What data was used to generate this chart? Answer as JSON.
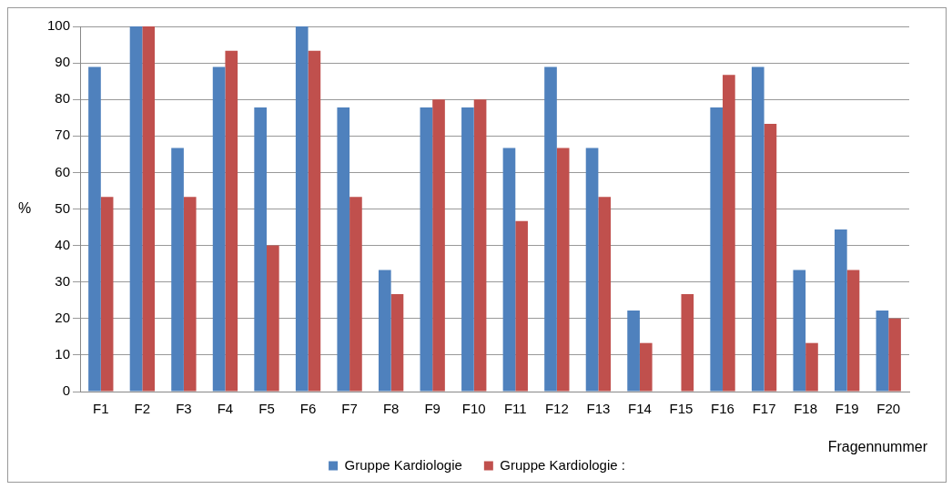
{
  "chart_data": {
    "type": "bar",
    "categories": [
      "F1",
      "F2",
      "F3",
      "F4",
      "F5",
      "F6",
      "F7",
      "F8",
      "F9",
      "F10",
      "F11",
      "F12",
      "F13",
      "F14",
      "F15",
      "F16",
      "F17",
      "F18",
      "F19",
      "F20"
    ],
    "series": [
      {
        "name": "Gruppe Kardiologie",
        "color": "#4f81bd",
        "values": [
          88.9,
          100,
          66.7,
          88.9,
          77.8,
          100,
          77.8,
          33.3,
          77.8,
          77.8,
          66.7,
          88.9,
          66.7,
          22.2,
          0,
          77.8,
          88.9,
          33.3,
          44.4,
          22.2
        ]
      },
      {
        "name": "Gruppe Kardiologie :",
        "color": "#c0504d",
        "values": [
          53.3,
          100,
          53.3,
          93.3,
          40,
          93.3,
          53.3,
          26.7,
          80,
          80,
          46.7,
          66.7,
          53.3,
          13.3,
          26.7,
          86.7,
          73.3,
          13.3,
          33.3,
          20
        ]
      }
    ],
    "ylabel": "%",
    "xlabel": "Fragennummer",
    "ylim": [
      0,
      100
    ],
    "yticks": [
      0,
      10,
      20,
      30,
      40,
      50,
      60,
      70,
      80,
      90,
      100
    ],
    "grid": "y",
    "legend": "bottom"
  }
}
